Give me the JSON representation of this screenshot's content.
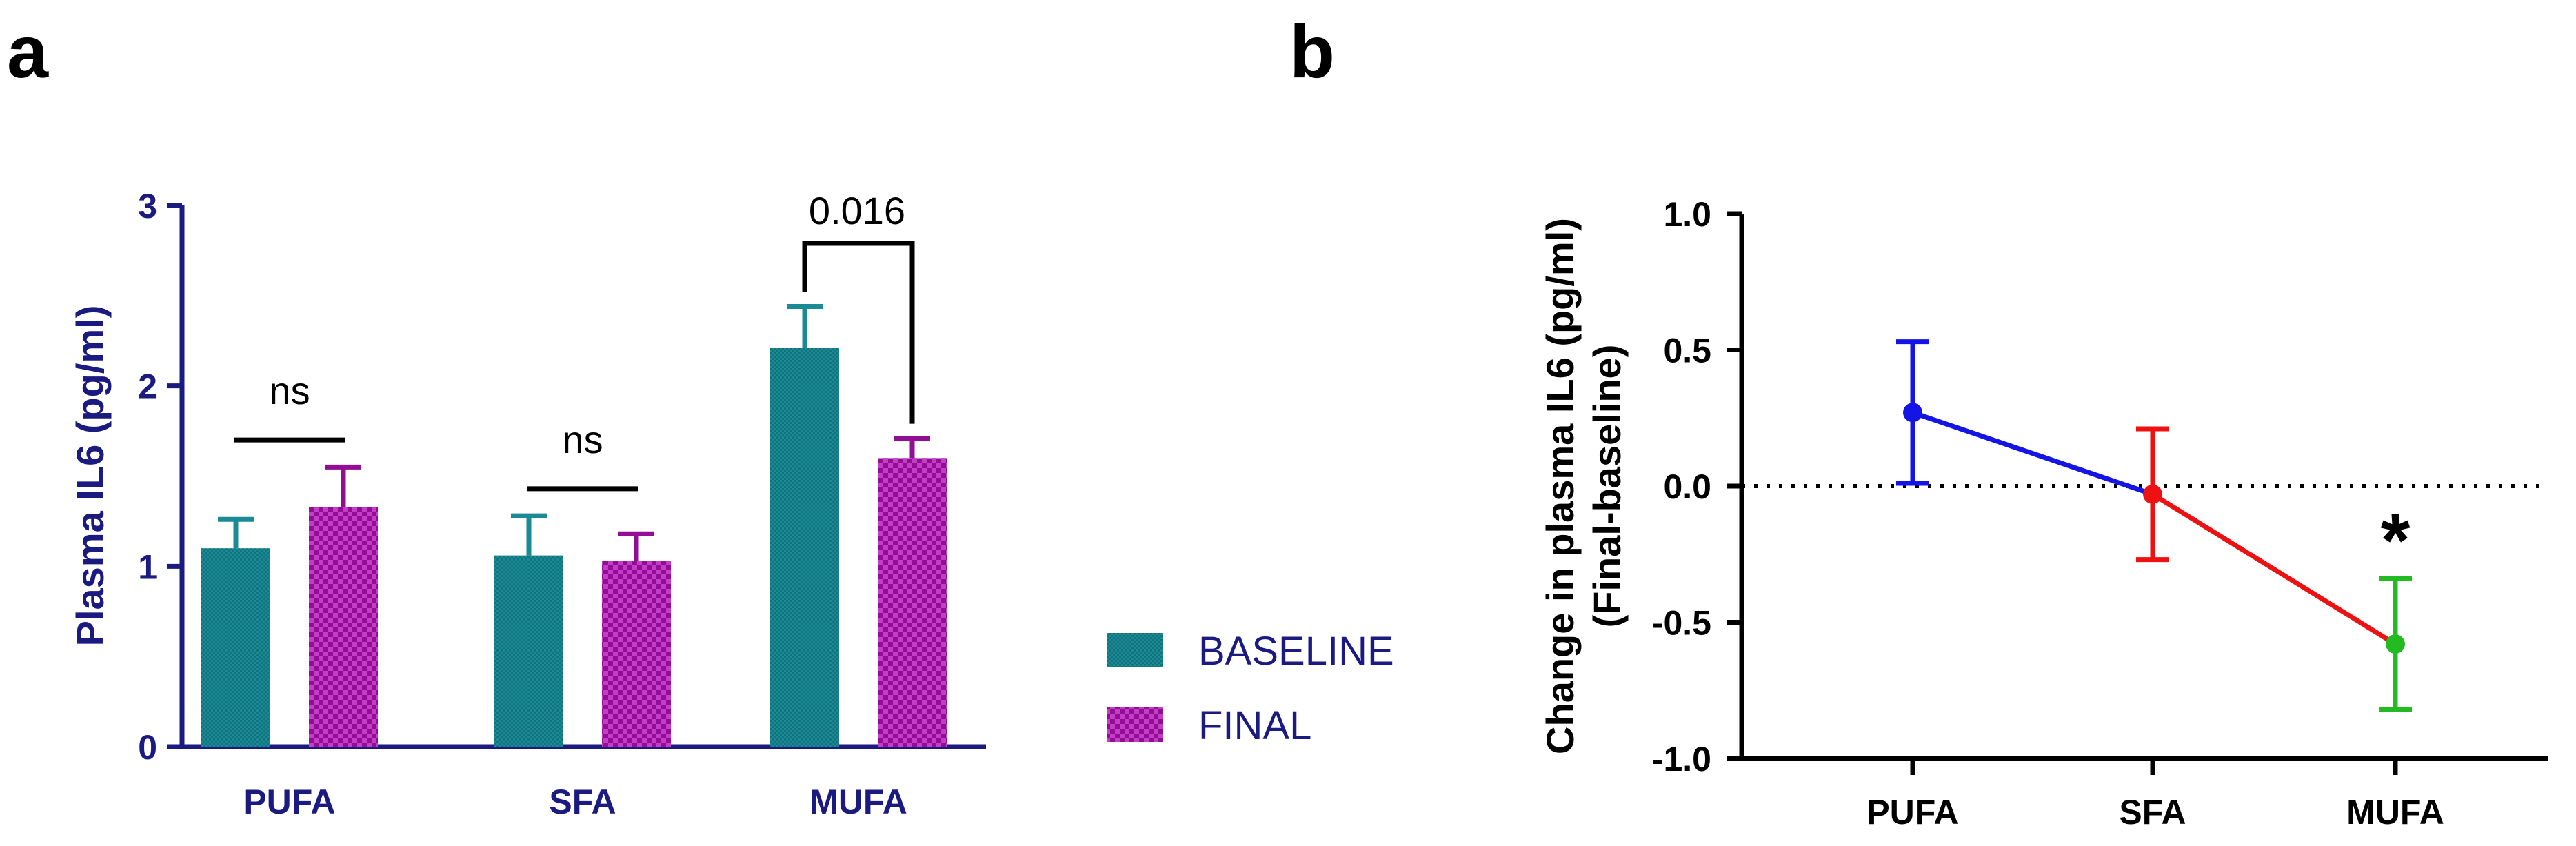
{
  "panels": {
    "a_label": "a",
    "b_label": "b"
  },
  "colors": {
    "baseline": "#1a8a96",
    "final": "#930d95",
    "axis_a": "#1a1a80",
    "pufa": "#1414e6",
    "sfa": "#ee1111",
    "mufa": "#22bb22"
  },
  "chart_data": [
    {
      "type": "bar",
      "panel": "a",
      "categories": [
        "PUFA",
        "SFA",
        "MUFA"
      ],
      "series": [
        {
          "name": "BASELINE",
          "values": [
            1.1,
            1.06,
            2.21
          ],
          "errors": [
            0.16,
            0.22,
            0.23
          ]
        },
        {
          "name": "FINAL",
          "values": [
            1.33,
            1.03,
            1.6
          ],
          "errors": [
            0.22,
            0.15,
            0.11
          ]
        }
      ],
      "ylabel": "Plasma  IL6 (pg/ml)",
      "xlabel": "",
      "ylim": [
        0,
        3
      ],
      "yticks": [
        "0",
        "1",
        "2",
        "3"
      ],
      "annotations": [
        {
          "category": "PUFA",
          "text": "ns"
        },
        {
          "category": "SFA",
          "text": "ns"
        },
        {
          "category": "MUFA",
          "text": "0.016"
        }
      ],
      "legend": {
        "position": "right",
        "entries": [
          "BASELINE",
          "FINAL"
        ]
      }
    },
    {
      "type": "line",
      "panel": "b",
      "categories": [
        "PUFA",
        "SFA",
        "MUFA"
      ],
      "values": [
        0.27,
        -0.03,
        -0.58
      ],
      "errors": [
        0.26,
        0.24,
        0.24
      ],
      "ylabel_line1": "Change in plasma  IL6 (pg/ml)",
      "ylabel_line2": "(Final-baseline)",
      "xlabel": "",
      "ylim": [
        -1.0,
        1.0
      ],
      "yticks": [
        "1.0",
        "0.5",
        "0.0",
        "-0.5",
        "-1.0"
      ],
      "reference_line": 0,
      "significance": {
        "category": "MUFA",
        "text": "*"
      }
    }
  ]
}
